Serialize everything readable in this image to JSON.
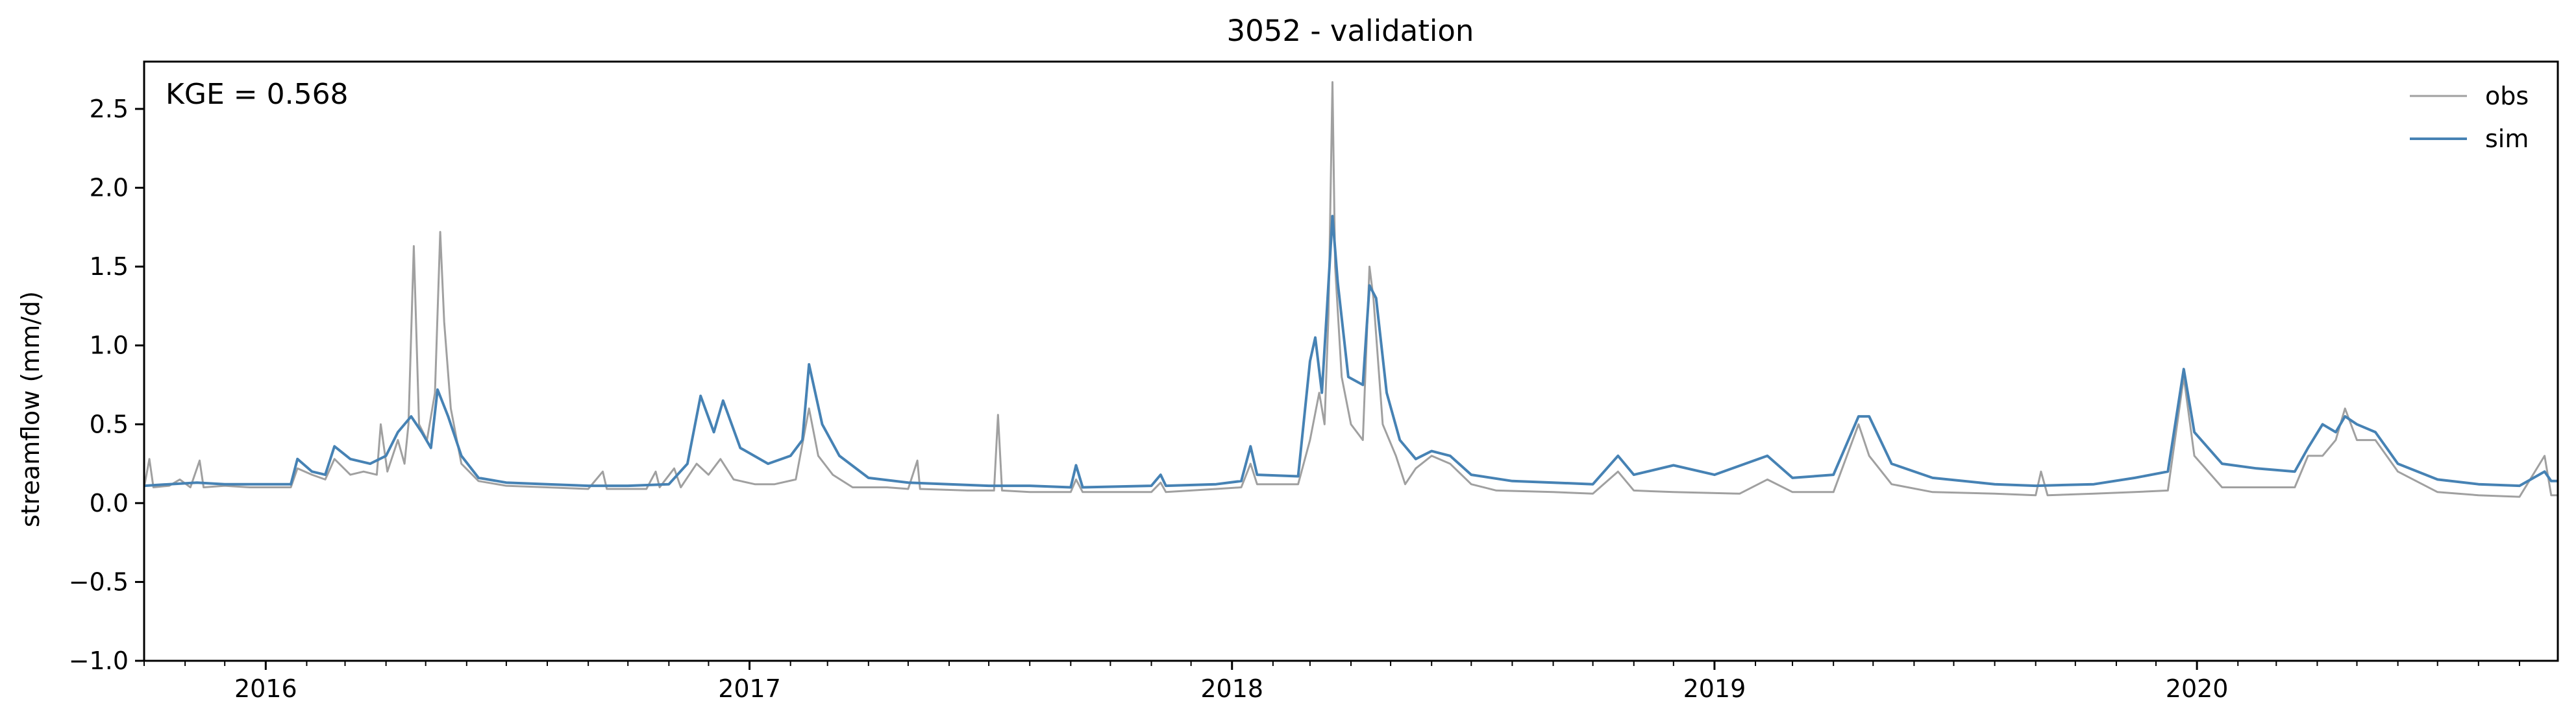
{
  "chart_data": {
    "type": "line",
    "title": "3052 - validation",
    "xlabel": "",
    "ylabel": "streamflow (mm/d)",
    "annotation": "KGE = 0.568",
    "xlim": [
      "2015-10-01",
      "2020-09-30"
    ],
    "ylim": [
      -1.0,
      2.8
    ],
    "yticks": [
      -1.0,
      -0.5,
      0.0,
      0.5,
      1.0,
      1.5,
      2.0,
      2.5
    ],
    "ytick_labels": [
      "−1.0",
      "−0.5",
      "0.0",
      "0.5",
      "1.0",
      "1.5",
      "2.0",
      "2.5"
    ],
    "xticks": [
      "2016-01-01",
      "2017-01-01",
      "2018-01-01",
      "2019-01-01",
      "2020-01-01"
    ],
    "xtick_labels": [
      "2016",
      "2017",
      "2018",
      "2019",
      "2020"
    ],
    "grid": false,
    "legend": {
      "placement": "top-right"
    },
    "series": [
      {
        "name": "obs",
        "color": "#a0a0a0",
        "points": [
          [
            "2015-10-01",
            0.1
          ],
          [
            "2015-10-05",
            0.28
          ],
          [
            "2015-10-08",
            0.1
          ],
          [
            "2015-10-20",
            0.11
          ],
          [
            "2015-10-28",
            0.15
          ],
          [
            "2015-11-05",
            0.1
          ],
          [
            "2015-11-12",
            0.27
          ],
          [
            "2015-11-15",
            0.1
          ],
          [
            "2015-12-01",
            0.11
          ],
          [
            "2015-12-20",
            0.1
          ],
          [
            "2016-01-10",
            0.1
          ],
          [
            "2016-01-20",
            0.1
          ],
          [
            "2016-01-25",
            0.22
          ],
          [
            "2016-02-05",
            0.18
          ],
          [
            "2016-02-15",
            0.15
          ],
          [
            "2016-02-22",
            0.28
          ],
          [
            "2016-03-05",
            0.18
          ],
          [
            "2016-03-15",
            0.2
          ],
          [
            "2016-03-25",
            0.18
          ],
          [
            "2016-03-28",
            0.5
          ],
          [
            "2016-04-02",
            0.2
          ],
          [
            "2016-04-10",
            0.4
          ],
          [
            "2016-04-15",
            0.25
          ],
          [
            "2016-04-18",
            0.5
          ],
          [
            "2016-04-22",
            1.63
          ],
          [
            "2016-04-26",
            0.5
          ],
          [
            "2016-05-02",
            0.4
          ],
          [
            "2016-05-08",
            0.7
          ],
          [
            "2016-05-12",
            1.72
          ],
          [
            "2016-05-15",
            1.15
          ],
          [
            "2016-05-20",
            0.6
          ],
          [
            "2016-05-28",
            0.25
          ],
          [
            "2016-06-10",
            0.14
          ],
          [
            "2016-07-01",
            0.11
          ],
          [
            "2016-08-01",
            0.1
          ],
          [
            "2016-09-01",
            0.09
          ],
          [
            "2016-09-12",
            0.2
          ],
          [
            "2016-09-15",
            0.09
          ],
          [
            "2016-10-15",
            0.09
          ],
          [
            "2016-10-22",
            0.2
          ],
          [
            "2016-10-25",
            0.1
          ],
          [
            "2016-11-05",
            0.22
          ],
          [
            "2016-11-10",
            0.1
          ],
          [
            "2016-11-22",
            0.25
          ],
          [
            "2016-12-01",
            0.18
          ],
          [
            "2016-12-10",
            0.28
          ],
          [
            "2016-12-20",
            0.15
          ],
          [
            "2017-01-05",
            0.12
          ],
          [
            "2017-01-20",
            0.12
          ],
          [
            "2017-02-05",
            0.15
          ],
          [
            "2017-02-15",
            0.6
          ],
          [
            "2017-02-22",
            0.3
          ],
          [
            "2017-03-05",
            0.18
          ],
          [
            "2017-03-20",
            0.1
          ],
          [
            "2017-04-15",
            0.1
          ],
          [
            "2017-05-01",
            0.09
          ],
          [
            "2017-05-08",
            0.27
          ],
          [
            "2017-05-10",
            0.09
          ],
          [
            "2017-06-15",
            0.08
          ],
          [
            "2017-07-05",
            0.08
          ],
          [
            "2017-07-08",
            0.56
          ],
          [
            "2017-07-11",
            0.08
          ],
          [
            "2017-08-01",
            0.07
          ],
          [
            "2017-09-01",
            0.07
          ],
          [
            "2017-09-05",
            0.15
          ],
          [
            "2017-09-10",
            0.07
          ],
          [
            "2017-11-01",
            0.07
          ],
          [
            "2017-11-08",
            0.13
          ],
          [
            "2017-11-12",
            0.07
          ],
          [
            "2017-12-20",
            0.09
          ],
          [
            "2018-01-08",
            0.1
          ],
          [
            "2018-01-15",
            0.25
          ],
          [
            "2018-01-20",
            0.12
          ],
          [
            "2018-02-10",
            0.12
          ],
          [
            "2018-02-20",
            0.12
          ],
          [
            "2018-03-01",
            0.4
          ],
          [
            "2018-03-08",
            0.7
          ],
          [
            "2018-03-12",
            0.5
          ],
          [
            "2018-03-15",
            1.2
          ],
          [
            "2018-03-18",
            2.67
          ],
          [
            "2018-03-20",
            1.5
          ],
          [
            "2018-03-25",
            0.8
          ],
          [
            "2018-04-01",
            0.5
          ],
          [
            "2018-04-10",
            0.4
          ],
          [
            "2018-04-15",
            1.5
          ],
          [
            "2018-04-18",
            1.3
          ],
          [
            "2018-04-25",
            0.5
          ],
          [
            "2018-05-05",
            0.3
          ],
          [
            "2018-05-12",
            0.12
          ],
          [
            "2018-05-20",
            0.22
          ],
          [
            "2018-06-01",
            0.3
          ],
          [
            "2018-06-15",
            0.25
          ],
          [
            "2018-07-01",
            0.12
          ],
          [
            "2018-07-20",
            0.08
          ],
          [
            "2018-09-01",
            0.07
          ],
          [
            "2018-10-01",
            0.06
          ],
          [
            "2018-10-20",
            0.2
          ],
          [
            "2018-11-01",
            0.08
          ],
          [
            "2018-12-01",
            0.07
          ],
          [
            "2019-01-20",
            0.06
          ],
          [
            "2019-02-10",
            0.15
          ],
          [
            "2019-03-01",
            0.07
          ],
          [
            "2019-04-01",
            0.07
          ],
          [
            "2019-04-20",
            0.5
          ],
          [
            "2019-04-28",
            0.3
          ],
          [
            "2019-05-15",
            0.12
          ],
          [
            "2019-06-15",
            0.07
          ],
          [
            "2019-08-01",
            0.06
          ],
          [
            "2019-09-01",
            0.05
          ],
          [
            "2019-09-05",
            0.2
          ],
          [
            "2019-09-10",
            0.05
          ],
          [
            "2019-10-15",
            0.06
          ],
          [
            "2019-11-15",
            0.07
          ],
          [
            "2019-12-10",
            0.08
          ],
          [
            "2019-12-22",
            0.8
          ],
          [
            "2019-12-30",
            0.3
          ],
          [
            "2020-01-20",
            0.1
          ],
          [
            "2020-02-15",
            0.1
          ],
          [
            "2020-03-15",
            0.1
          ],
          [
            "2020-03-25",
            0.3
          ],
          [
            "2020-04-05",
            0.3
          ],
          [
            "2020-04-15",
            0.4
          ],
          [
            "2020-04-22",
            0.6
          ],
          [
            "2020-05-01",
            0.4
          ],
          [
            "2020-05-15",
            0.4
          ],
          [
            "2020-06-01",
            0.2
          ],
          [
            "2020-07-01",
            0.07
          ],
          [
            "2020-08-01",
            0.05
          ],
          [
            "2020-09-01",
            0.04
          ],
          [
            "2020-09-20",
            0.3
          ],
          [
            "2020-09-25",
            0.05
          ],
          [
            "2020-09-30",
            0.05
          ]
        ]
      },
      {
        "name": "sim",
        "color": "#4682b4",
        "points": [
          [
            "2015-10-01",
            0.11
          ],
          [
            "2015-10-20",
            0.12
          ],
          [
            "2015-11-10",
            0.13
          ],
          [
            "2015-12-01",
            0.12
          ],
          [
            "2016-01-01",
            0.12
          ],
          [
            "2016-01-20",
            0.12
          ],
          [
            "2016-01-25",
            0.28
          ],
          [
            "2016-02-05",
            0.2
          ],
          [
            "2016-02-15",
            0.18
          ],
          [
            "2016-02-22",
            0.36
          ],
          [
            "2016-03-05",
            0.28
          ],
          [
            "2016-03-20",
            0.25
          ],
          [
            "2016-04-01",
            0.3
          ],
          [
            "2016-04-10",
            0.45
          ],
          [
            "2016-04-20",
            0.55
          ],
          [
            "2016-04-28",
            0.45
          ],
          [
            "2016-05-05",
            0.35
          ],
          [
            "2016-05-10",
            0.72
          ],
          [
            "2016-05-18",
            0.55
          ],
          [
            "2016-05-28",
            0.3
          ],
          [
            "2016-06-10",
            0.16
          ],
          [
            "2016-07-01",
            0.13
          ],
          [
            "2016-08-01",
            0.12
          ],
          [
            "2016-09-01",
            0.11
          ],
          [
            "2016-10-01",
            0.11
          ],
          [
            "2016-11-01",
            0.12
          ],
          [
            "2016-11-15",
            0.25
          ],
          [
            "2016-11-25",
            0.68
          ],
          [
            "2016-12-05",
            0.45
          ],
          [
            "2016-12-12",
            0.65
          ],
          [
            "2016-12-25",
            0.35
          ],
          [
            "2017-01-15",
            0.25
          ],
          [
            "2017-02-01",
            0.3
          ],
          [
            "2017-02-10",
            0.4
          ],
          [
            "2017-02-15",
            0.88
          ],
          [
            "2017-02-25",
            0.5
          ],
          [
            "2017-03-10",
            0.3
          ],
          [
            "2017-04-01",
            0.16
          ],
          [
            "2017-05-01",
            0.13
          ],
          [
            "2017-06-01",
            0.12
          ],
          [
            "2017-07-01",
            0.11
          ],
          [
            "2017-08-01",
            0.11
          ],
          [
            "2017-09-01",
            0.1
          ],
          [
            "2017-09-05",
            0.24
          ],
          [
            "2017-09-10",
            0.1
          ],
          [
            "2017-11-01",
            0.11
          ],
          [
            "2017-11-08",
            0.18
          ],
          [
            "2017-11-12",
            0.11
          ],
          [
            "2017-12-20",
            0.12
          ],
          [
            "2018-01-08",
            0.14
          ],
          [
            "2018-01-15",
            0.36
          ],
          [
            "2018-01-20",
            0.18
          ],
          [
            "2018-02-20",
            0.17
          ],
          [
            "2018-03-01",
            0.9
          ],
          [
            "2018-03-05",
            1.05
          ],
          [
            "2018-03-10",
            0.7
          ],
          [
            "2018-03-14",
            1.25
          ],
          [
            "2018-03-18",
            1.82
          ],
          [
            "2018-03-22",
            1.4
          ],
          [
            "2018-03-30",
            0.8
          ],
          [
            "2018-04-10",
            0.75
          ],
          [
            "2018-04-15",
            1.38
          ],
          [
            "2018-04-20",
            1.3
          ],
          [
            "2018-04-28",
            0.7
          ],
          [
            "2018-05-08",
            0.4
          ],
          [
            "2018-05-20",
            0.28
          ],
          [
            "2018-06-01",
            0.33
          ],
          [
            "2018-06-15",
            0.3
          ],
          [
            "2018-07-01",
            0.18
          ],
          [
            "2018-08-01",
            0.14
          ],
          [
            "2018-09-01",
            0.13
          ],
          [
            "2018-10-01",
            0.12
          ],
          [
            "2018-10-20",
            0.3
          ],
          [
            "2018-11-01",
            0.18
          ],
          [
            "2018-12-01",
            0.24
          ],
          [
            "2019-01-01",
            0.18
          ],
          [
            "2019-02-10",
            0.3
          ],
          [
            "2019-03-01",
            0.16
          ],
          [
            "2019-04-01",
            0.18
          ],
          [
            "2019-04-20",
            0.55
          ],
          [
            "2019-04-28",
            0.55
          ],
          [
            "2019-05-15",
            0.25
          ],
          [
            "2019-06-15",
            0.16
          ],
          [
            "2019-08-01",
            0.12
          ],
          [
            "2019-09-01",
            0.11
          ],
          [
            "2019-10-15",
            0.12
          ],
          [
            "2019-11-15",
            0.16
          ],
          [
            "2019-12-10",
            0.2
          ],
          [
            "2019-12-22",
            0.85
          ],
          [
            "2019-12-30",
            0.45
          ],
          [
            "2020-01-20",
            0.25
          ],
          [
            "2020-02-15",
            0.22
          ],
          [
            "2020-03-15",
            0.2
          ],
          [
            "2020-03-25",
            0.35
          ],
          [
            "2020-04-05",
            0.5
          ],
          [
            "2020-04-15",
            0.45
          ],
          [
            "2020-04-22",
            0.55
          ],
          [
            "2020-05-01",
            0.5
          ],
          [
            "2020-05-15",
            0.45
          ],
          [
            "2020-06-01",
            0.25
          ],
          [
            "2020-07-01",
            0.15
          ],
          [
            "2020-08-01",
            0.12
          ],
          [
            "2020-09-01",
            0.11
          ],
          [
            "2020-09-20",
            0.2
          ],
          [
            "2020-09-25",
            0.14
          ],
          [
            "2020-09-30",
            0.14
          ]
        ]
      }
    ]
  }
}
